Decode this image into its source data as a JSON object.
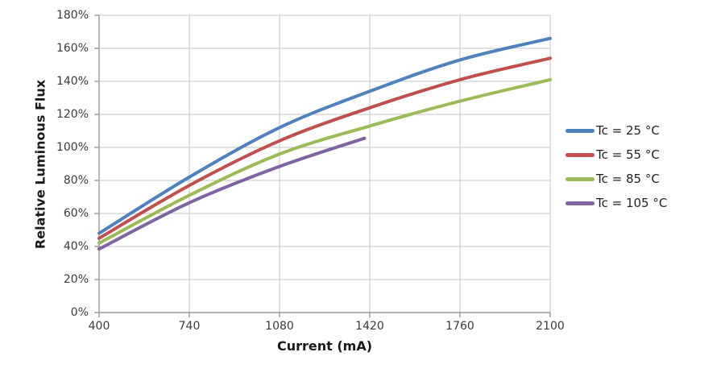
{
  "chart_data": {
    "type": "line",
    "title": "",
    "xlabel": "Current (mA)",
    "ylabel": "Relative Luminous Flux",
    "x_tick_labels": [
      "400",
      "740",
      "1080",
      "1420",
      "1760",
      "2100"
    ],
    "y_tick_labels": [
      "0%",
      "20%",
      "40%",
      "60%",
      "80%",
      "100%",
      "120%",
      "140%",
      "160%",
      "180%"
    ],
    "xlim": [
      400,
      2100
    ],
    "ylim_percent": [
      0,
      180
    ],
    "grid": true,
    "legend_position": "right-outside",
    "y_unit": "percent",
    "series": [
      {
        "name": "Tc = 25 °C",
        "color": "#4F81BD",
        "x": [
          400,
          740,
          1080,
          1420,
          1760,
          2100
        ],
        "values": [
          48,
          82,
          112,
          134,
          153,
          166
        ]
      },
      {
        "name": "Tc = 55 °C",
        "color": "#C0504D",
        "x": [
          400,
          740,
          1080,
          1420,
          1760,
          2100
        ],
        "values": [
          45,
          77,
          104,
          124,
          141,
          154
        ]
      },
      {
        "name": "Tc = 85 °C",
        "color": "#9BBB59",
        "x": [
          400,
          740,
          1080,
          1420,
          1760,
          2100
        ],
        "values": [
          42,
          71,
          96,
          113,
          128,
          141
        ]
      },
      {
        "name": "Tc = 105 °C",
        "color": "#8064A2",
        "x": [
          400,
          740,
          1080,
          1400
        ],
        "values": [
          38.5,
          66.5,
          88.5,
          105.5
        ]
      }
    ],
    "colors": {
      "background": "#ffffff",
      "gridline": "#c3c3c3",
      "axis": "#9a9a9a",
      "tick_label": "#3a3a40",
      "title_text": "#1a1a1e",
      "legend_text": "#222226"
    }
  }
}
